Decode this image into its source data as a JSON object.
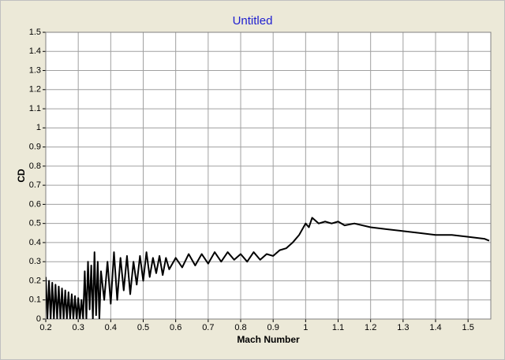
{
  "chart_data": {
    "type": "line",
    "title": "Untitled",
    "x_label": "Mach Number",
    "y_label": "CD",
    "color": "#000000",
    "grid": true,
    "xlim": [
      0.2,
      1.57
    ],
    "ylim": [
      0,
      1.5
    ],
    "xticks": [
      0.2,
      0.3,
      0.4,
      0.5,
      0.6,
      0.7,
      0.8,
      0.9,
      1,
      1.1,
      1.2,
      1.3,
      1.4,
      1.5
    ],
    "yticks": [
      0,
      0.1,
      0.2,
      0.3,
      0.4,
      0.5,
      0.6,
      0.7,
      0.8,
      0.9,
      1,
      1.1,
      1.2,
      1.3,
      1.4,
      1.5
    ],
    "x": [
      0.2,
      0.205,
      0.21,
      0.215,
      0.22,
      0.225,
      0.23,
      0.235,
      0.24,
      0.245,
      0.25,
      0.255,
      0.26,
      0.265,
      0.27,
      0.275,
      0.28,
      0.285,
      0.29,
      0.295,
      0.3,
      0.305,
      0.31,
      0.315,
      0.32,
      0.325,
      0.33,
      0.335,
      0.34,
      0.345,
      0.35,
      0.355,
      0.36,
      0.365,
      0.37,
      0.38,
      0.39,
      0.4,
      0.41,
      0.42,
      0.43,
      0.44,
      0.45,
      0.46,
      0.47,
      0.48,
      0.49,
      0.5,
      0.51,
      0.52,
      0.53,
      0.54,
      0.55,
      0.56,
      0.57,
      0.58,
      0.6,
      0.62,
      0.64,
      0.66,
      0.68,
      0.7,
      0.72,
      0.74,
      0.76,
      0.78,
      0.8,
      0.82,
      0.84,
      0.86,
      0.88,
      0.9,
      0.92,
      0.94,
      0.96,
      0.98,
      1,
      1.01,
      1.02,
      1.04,
      1.06,
      1.08,
      1.1,
      1.12,
      1.15,
      1.2,
      1.25,
      1.3,
      1.35,
      1.4,
      1.45,
      1.5,
      1.55,
      1.565
    ],
    "values": [
      0.22,
      0,
      0.2,
      0,
      0.19,
      0,
      0.18,
      0,
      0.17,
      0,
      0.16,
      0,
      0.15,
      0,
      0.14,
      0,
      0.13,
      0,
      0.12,
      0,
      0.11,
      0,
      0.1,
      0,
      0.25,
      0,
      0.3,
      0.05,
      0.28,
      0,
      0.35,
      0.02,
      0.3,
      0,
      0.25,
      0.1,
      0.3,
      0.08,
      0.35,
      0.1,
      0.32,
      0.15,
      0.33,
      0.13,
      0.3,
      0.18,
      0.33,
      0.2,
      0.35,
      0.22,
      0.32,
      0.24,
      0.33,
      0.23,
      0.32,
      0.26,
      0.32,
      0.27,
      0.34,
      0.28,
      0.34,
      0.29,
      0.35,
      0.3,
      0.35,
      0.31,
      0.34,
      0.3,
      0.35,
      0.31,
      0.34,
      0.33,
      0.36,
      0.37,
      0.4,
      0.44,
      0.5,
      0.48,
      0.53,
      0.5,
      0.51,
      0.5,
      0.51,
      0.49,
      0.5,
      0.48,
      0.47,
      0.46,
      0.45,
      0.44,
      0.44,
      0.43,
      0.42,
      0.41
    ]
  }
}
